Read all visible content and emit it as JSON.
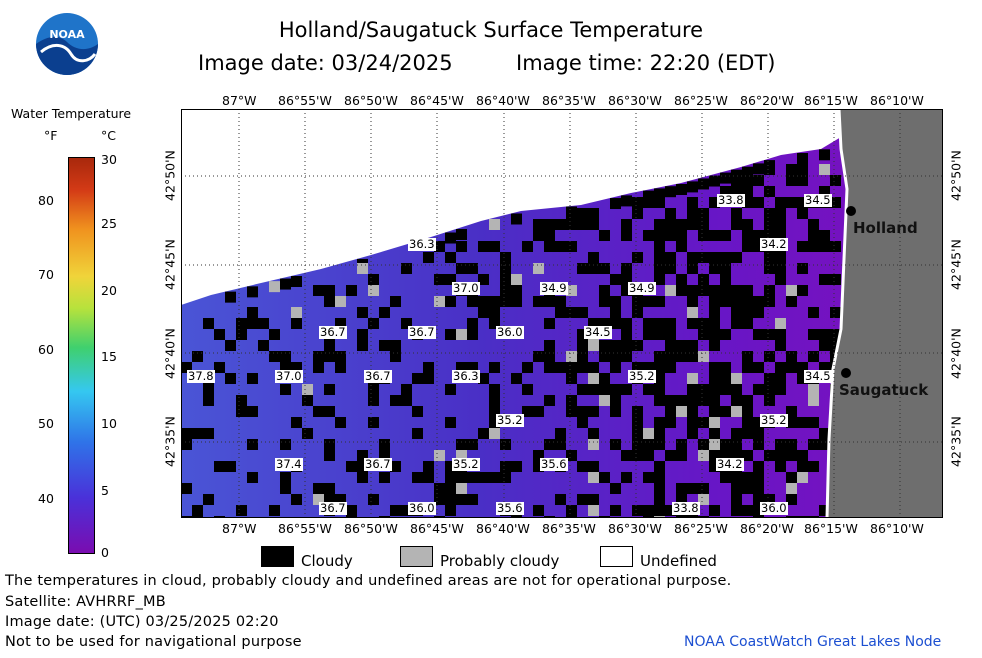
{
  "title": "Holland/Saugatuck Surface Temperature",
  "image_date_label": "Image date: 03/24/2025",
  "image_time_label": "Image time: 22:20 (EDT)",
  "logo_text": "NOAA",
  "scale": {
    "heading": "Water Temperature",
    "unit_f": "°F",
    "unit_c": "°C",
    "f_ticks": [
      "80",
      "70",
      "60",
      "50",
      "40"
    ],
    "c_ticks": [
      "30",
      "25",
      "20",
      "15",
      "10",
      "5",
      "0"
    ]
  },
  "longitudes": [
    "87°W",
    "86°55'W",
    "86°50'W",
    "86°45'W",
    "86°40'W",
    "86°35'W",
    "86°30'W",
    "86°25'W",
    "86°20'W",
    "86°15'W",
    "86°10'W"
  ],
  "latitudes": [
    "42°50'N",
    "42°45'N",
    "42°40'N",
    "42°35'N"
  ],
  "places": {
    "holland": "Holland",
    "saugatuck": "Saugatuck"
  },
  "temp_labels": [
    "33.8",
    "34.5",
    "36.3",
    "34.2",
    "37.0",
    "34.9",
    "34.9",
    "36.7",
    "36.7",
    "36.0",
    "34.5",
    "37.8",
    "37.0",
    "36.7",
    "36.3",
    "35.2",
    "34.5",
    "35.2",
    "35.2",
    "37.4",
    "36.7",
    "35.2",
    "35.6",
    "34.2",
    "36.7",
    "36.0",
    "35.6",
    "33.8",
    "36.0"
  ],
  "legend": {
    "cloudy": "Cloudy",
    "probably_cloudy": "Probably cloudy",
    "undefined": "Undefined"
  },
  "colors": {
    "land": "#6e6e6e",
    "cloudy": "#000000",
    "probably_cloudy": "#b4b4b4",
    "water_warm": "#4a3fcf",
    "water_cold": "#6a18c8"
  },
  "footer": {
    "line1": "The temperatures in cloud, probably cloudy and undefined areas are not for operational purpose.",
    "line2": "Satellite: AVHRRF_MB",
    "line3": "Image date: (UTC) 03/25/2025  02:20",
    "line4": "Not to be used for navigational purpose"
  },
  "credit": "NOAA CoastWatch Great Lakes Node"
}
